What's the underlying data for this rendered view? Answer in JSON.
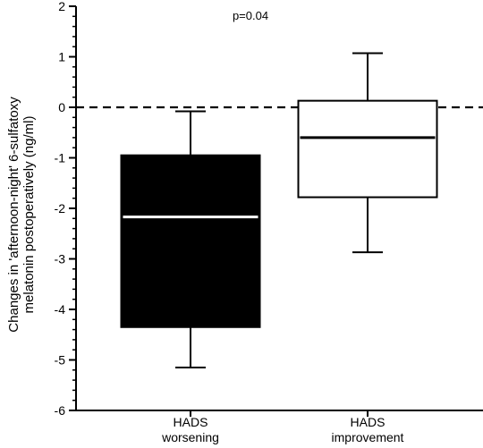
{
  "chart_data": {
    "type": "boxplot",
    "annotation": "p=0.04",
    "ylabel_line1": "Changes in 'afternoon-night' 6-sulfatoxy",
    "ylabel_line2": "melatonin postoperatively (ng/ml)",
    "ylim": [
      -6,
      2
    ],
    "yticks": [
      2,
      1,
      0,
      -1,
      -2,
      -3,
      -4,
      -5,
      -6
    ],
    "minor_step": 0.2,
    "reference_line": {
      "y": 0,
      "style": "dashed"
    },
    "groups": [
      {
        "label_line1": "HADS",
        "label_line2": "worsening",
        "whisker_low": -5.15,
        "q1": -4.35,
        "median": -2.17,
        "q3": -0.95,
        "whisker_high": -0.08,
        "fill": "#000000",
        "median_color": "#ffffff"
      },
      {
        "label_line1": "HADS",
        "label_line2": "improvement",
        "whisker_low": -2.87,
        "q1": -1.78,
        "median": -0.6,
        "q3": 0.13,
        "whisker_high": 1.07,
        "fill": "#ffffff",
        "median_color": "#000000"
      }
    ]
  }
}
